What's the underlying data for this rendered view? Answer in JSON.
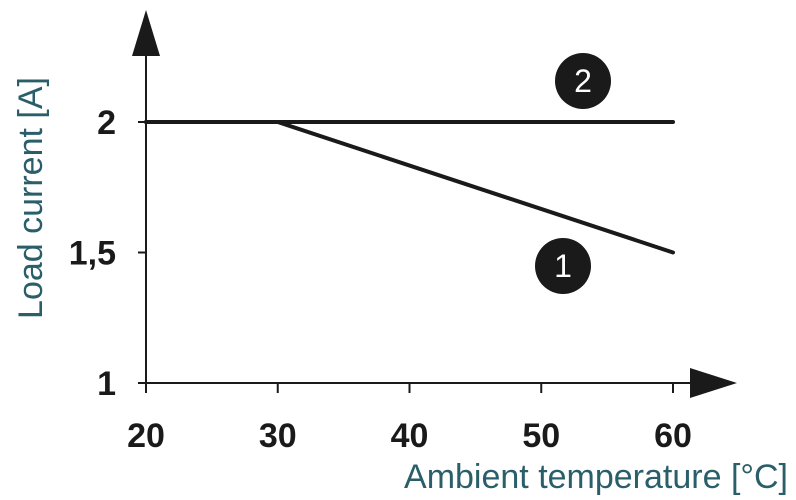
{
  "chart_data": {
    "type": "line",
    "xlabel": "Ambient temperature [°C]",
    "ylabel": "Load current [A]",
    "x_ticks": [
      "20",
      "30",
      "40",
      "50",
      "60"
    ],
    "y_ticks": [
      "1",
      "1,5",
      "2"
    ],
    "xlim": [
      20,
      62.5
    ],
    "ylim": [
      1,
      2.45
    ],
    "grid": false,
    "series": [
      {
        "name": "1",
        "x": [
          20,
          30,
          60
        ],
        "y": [
          2,
          2,
          1.5
        ]
      },
      {
        "name": "2",
        "x": [
          20,
          60
        ],
        "y": [
          2,
          2
        ]
      }
    ]
  }
}
